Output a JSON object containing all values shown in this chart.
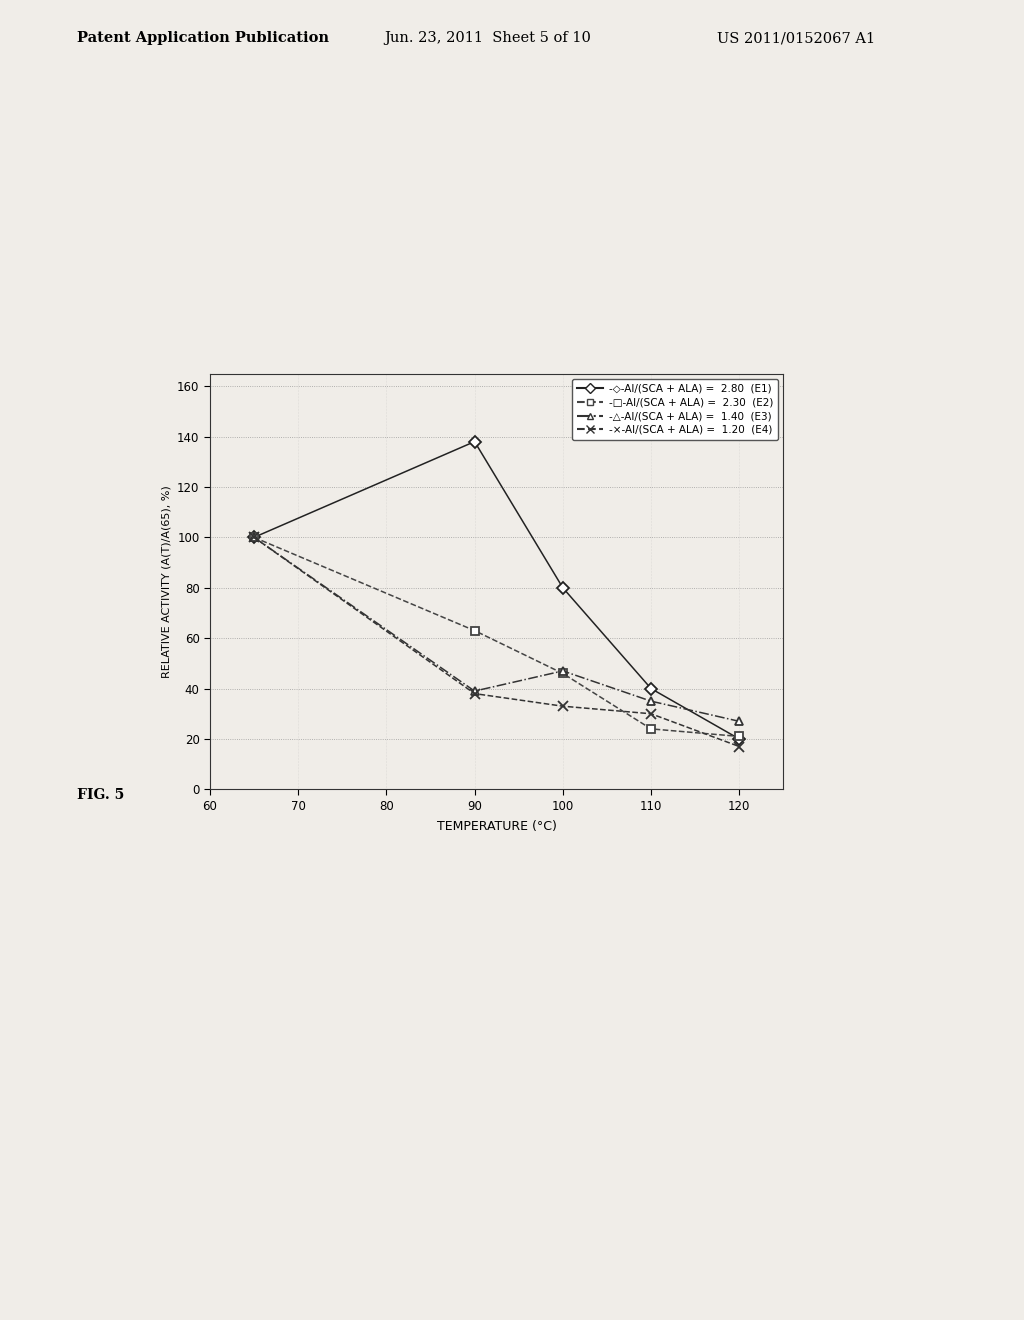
{
  "series": [
    {
      "label": "-◇-Al/(SCA + ALA) = 2.80 (E1)",
      "x": [
        65,
        90,
        100,
        110,
        120
      ],
      "y": [
        100,
        138,
        80,
        40,
        20
      ],
      "linestyle": "-",
      "marker": "D",
      "color": "#222222",
      "markersize": 6,
      "markerfacecolor": "white"
    },
    {
      "label": "-□-Al/(SCA + ALA) = 2.30 (E2)",
      "x": [
        65,
        90,
        100,
        110,
        120
      ],
      "y": [
        100,
        63,
        46,
        24,
        21
      ],
      "linestyle": "--",
      "marker": "s",
      "color": "#444444",
      "markersize": 6,
      "markerfacecolor": "white"
    },
    {
      "label": "-△-Al/(SCA + ALA) = 1.40 (E3)",
      "x": [
        65,
        90,
        100,
        110,
        120
      ],
      "y": [
        100,
        39,
        47,
        35,
        27
      ],
      "linestyle": "-.",
      "marker": "^",
      "color": "#333333",
      "markersize": 6,
      "markerfacecolor": "white"
    },
    {
      "label": "-×-Al/(SCA + ALA) = 1.20 (E4)",
      "x": [
        65,
        90,
        100,
        110,
        120
      ],
      "y": [
        100,
        38,
        33,
        30,
        17
      ],
      "linestyle": "--",
      "marker": "x",
      "color": "#333333",
      "markersize": 7,
      "markerfacecolor": "none"
    }
  ],
  "xlabel": "TEMPERATURE (°C)",
  "ylabel": "RELATIVE ACTIVITY (A(T)/A(65), %)",
  "xlim": [
    60,
    125
  ],
  "ylim": [
    0,
    165
  ],
  "xticks": [
    60,
    70,
    80,
    90,
    100,
    110,
    120
  ],
  "yticks": [
    0,
    20,
    40,
    60,
    80,
    100,
    120,
    140,
    160
  ],
  "legend_labels": [
    "-◇-Al/(SCA + ALA) =  2.80  (E1)",
    "-□-Al/(SCA + ALA) =  2.30  (E2)",
    "-△-Al/(SCA + ALA) =  1.40  (E3)",
    "-×-Al/(SCA + ALA) =  1.20  (E4)"
  ],
  "fig_label": "FIG. 5",
  "header_left": "Patent Application Publication",
  "header_center": "Jun. 23, 2011  Sheet 5 of 10",
  "header_right": "US 2011/0152067 A1",
  "bg_color": "#f0ede8"
}
